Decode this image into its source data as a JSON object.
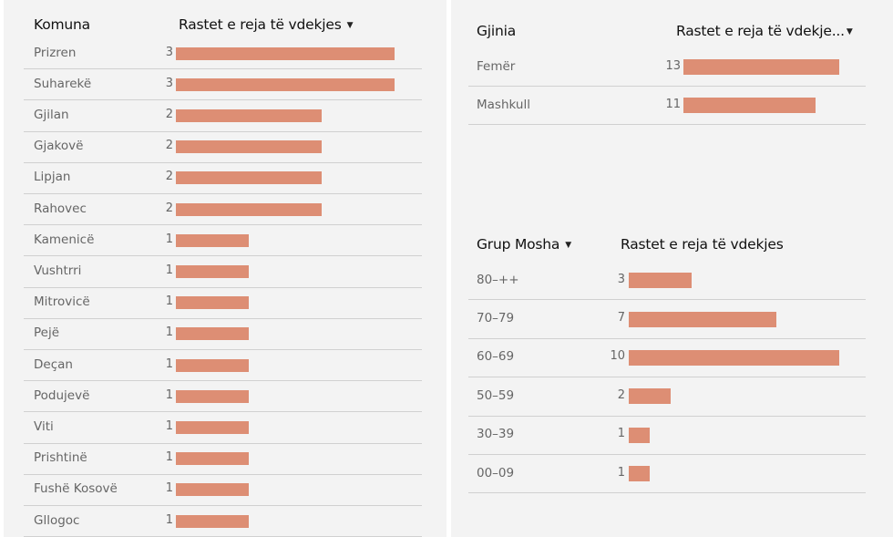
{
  "colors": {
    "bar": "#dd8e74",
    "panel_bg": "#f3f3f3",
    "divider": "#d0d0d0"
  },
  "chart_data": [
    {
      "type": "bar",
      "orientation": "horizontal",
      "column_headers": [
        "Komuna",
        "Rastet e reja të vdekjes"
      ],
      "sort_indicator": "▼",
      "categories": [
        "Prizren",
        "Suharekë",
        "Gjilan",
        "Gjakovë",
        "Lipjan",
        "Rahovec",
        "Kamenicë",
        "Vushtrri",
        "Mitrovicë",
        "Pejë",
        "Deçan",
        "Podujevë",
        "Viti",
        "Prishtinë",
        "Fushë Kosovë",
        "Gllogoc"
      ],
      "values": [
        3,
        3,
        2,
        2,
        2,
        2,
        1,
        1,
        1,
        1,
        1,
        1,
        1,
        1,
        1,
        1
      ],
      "xlim": [
        0,
        3
      ]
    },
    {
      "type": "bar",
      "orientation": "horizontal",
      "column_headers": [
        "Gjinia",
        "Rastet e reja të vdekje..."
      ],
      "sort_indicator": "▼",
      "categories": [
        "Femër",
        "Mashkull"
      ],
      "values": [
        13,
        11
      ],
      "xlim": [
        0,
        13
      ]
    },
    {
      "type": "bar",
      "orientation": "horizontal",
      "column_headers": [
        "Grup Mosha",
        "Rastet e reja të vdekjes"
      ],
      "sort_indicator": "▼",
      "categories": [
        "80–++",
        "70–79",
        "60–69",
        "50–59",
        "30–39",
        "00–09"
      ],
      "values": [
        3,
        7,
        10,
        2,
        1,
        1
      ],
      "xlim": [
        0,
        10
      ]
    }
  ]
}
